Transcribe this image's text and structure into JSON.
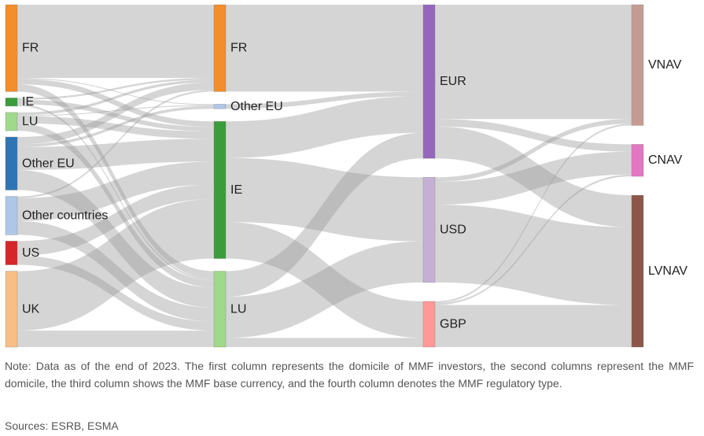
{
  "chart_data": {
    "type": "sankey",
    "columns": [
      [
        {
          "id": "FR_i",
          "label": "FR",
          "color": "#f28e2b"
        },
        {
          "id": "IE_i",
          "label": "IE",
          "color": "#3a9d3a"
        },
        {
          "id": "LU_i",
          "label": "LU",
          "color": "#9fd98a"
        },
        {
          "id": "OEU_i",
          "label": "Other EU",
          "color": "#2e75b6"
        },
        {
          "id": "OC_i",
          "label": "Other countries",
          "color": "#aec7e8"
        },
        {
          "id": "US_i",
          "label": "US",
          "color": "#d62728"
        },
        {
          "id": "UK_i",
          "label": "UK",
          "color": "#f7bf84"
        }
      ],
      [
        {
          "id": "FR_d",
          "label": "FR",
          "color": "#f28e2b"
        },
        {
          "id": "OEU_d",
          "label": "Other EU",
          "color": "#aec7e8"
        },
        {
          "id": "IE_d",
          "label": "IE",
          "color": "#3a9d3a"
        },
        {
          "id": "LU_d",
          "label": "LU",
          "color": "#9fd98a"
        }
      ],
      [
        {
          "id": "EUR",
          "label": "EUR",
          "color": "#9467bd"
        },
        {
          "id": "USD",
          "label": "USD",
          "color": "#c5b0d5"
        },
        {
          "id": "GBP",
          "label": "GBP",
          "color": "#ff9896"
        }
      ],
      [
        {
          "id": "VNAV",
          "label": "VNAV",
          "color": "#c49c94"
        },
        {
          "id": "CNAV",
          "label": "CNAV",
          "color": "#e377c2"
        },
        {
          "id": "LVNAV",
          "label": "LVNAV",
          "color": "#8c564b"
        }
      ]
    ],
    "links": [
      {
        "source": "FR_i",
        "target": "FR_d",
        "value": 80
      },
      {
        "source": "FR_i",
        "target": "OEU_d",
        "value": 1
      },
      {
        "source": "FR_i",
        "target": "IE_d",
        "value": 6
      },
      {
        "source": "FR_i",
        "target": "LU_d",
        "value": 8
      },
      {
        "source": "IE_i",
        "target": "FR_d",
        "value": 2
      },
      {
        "source": "IE_i",
        "target": "IE_d",
        "value": 5
      },
      {
        "source": "IE_i",
        "target": "LU_d",
        "value": 2
      },
      {
        "source": "LU_i",
        "target": "FR_d",
        "value": 3
      },
      {
        "source": "LU_i",
        "target": "OEU_d",
        "value": 1
      },
      {
        "source": "LU_i",
        "target": "IE_d",
        "value": 8
      },
      {
        "source": "LU_i",
        "target": "LU_d",
        "value": 8
      },
      {
        "source": "OEU_i",
        "target": "FR_d",
        "value": 8
      },
      {
        "source": "OEU_i",
        "target": "OEU_d",
        "value": 3
      },
      {
        "source": "OEU_i",
        "target": "IE_d",
        "value": 25
      },
      {
        "source": "OEU_i",
        "target": "LU_d",
        "value": 22
      },
      {
        "source": "OC_i",
        "target": "FR_d",
        "value": 2
      },
      {
        "source": "OC_i",
        "target": "IE_d",
        "value": 25
      },
      {
        "source": "OC_i",
        "target": "LU_d",
        "value": 15
      },
      {
        "source": "US_i",
        "target": "IE_d",
        "value": 16
      },
      {
        "source": "US_i",
        "target": "LU_d",
        "value": 10
      },
      {
        "source": "UK_i",
        "target": "IE_d",
        "value": 65
      },
      {
        "source": "UK_i",
        "target": "LU_d",
        "value": 18
      },
      {
        "source": "FR_d",
        "target": "EUR",
        "value": 95
      },
      {
        "source": "OEU_d",
        "target": "EUR",
        "value": 5
      },
      {
        "source": "IE_d",
        "target": "EUR",
        "value": 40
      },
      {
        "source": "IE_d",
        "target": "USD",
        "value": 70
      },
      {
        "source": "IE_d",
        "target": "GBP",
        "value": 40
      },
      {
        "source": "LU_d",
        "target": "EUR",
        "value": 28
      },
      {
        "source": "LU_d",
        "target": "USD",
        "value": 45
      },
      {
        "source": "LU_d",
        "target": "GBP",
        "value": 10
      },
      {
        "source": "EUR",
        "target": "VNAV",
        "value": 125
      },
      {
        "source": "EUR",
        "target": "CNAV",
        "value": 8
      },
      {
        "source": "EUR",
        "target": "LVNAV",
        "value": 35
      },
      {
        "source": "USD",
        "target": "VNAV",
        "value": 5
      },
      {
        "source": "USD",
        "target": "CNAV",
        "value": 25
      },
      {
        "source": "USD",
        "target": "LVNAV",
        "value": 85
      },
      {
        "source": "GBP",
        "target": "VNAV",
        "value": 2
      },
      {
        "source": "GBP",
        "target": "CNAV",
        "value": 2
      },
      {
        "source": "GBP",
        "target": "LVNAV",
        "value": 46
      }
    ]
  },
  "note": "Note: Data as of the end of 2023. The first column represents the domicile of MMF investors, the second columns represent the MMF domicile, the third column shows the MMF base currency, and the fourth column denotes the MMF regulatory type.",
  "sources": "Sources: ESRB, ESMA"
}
